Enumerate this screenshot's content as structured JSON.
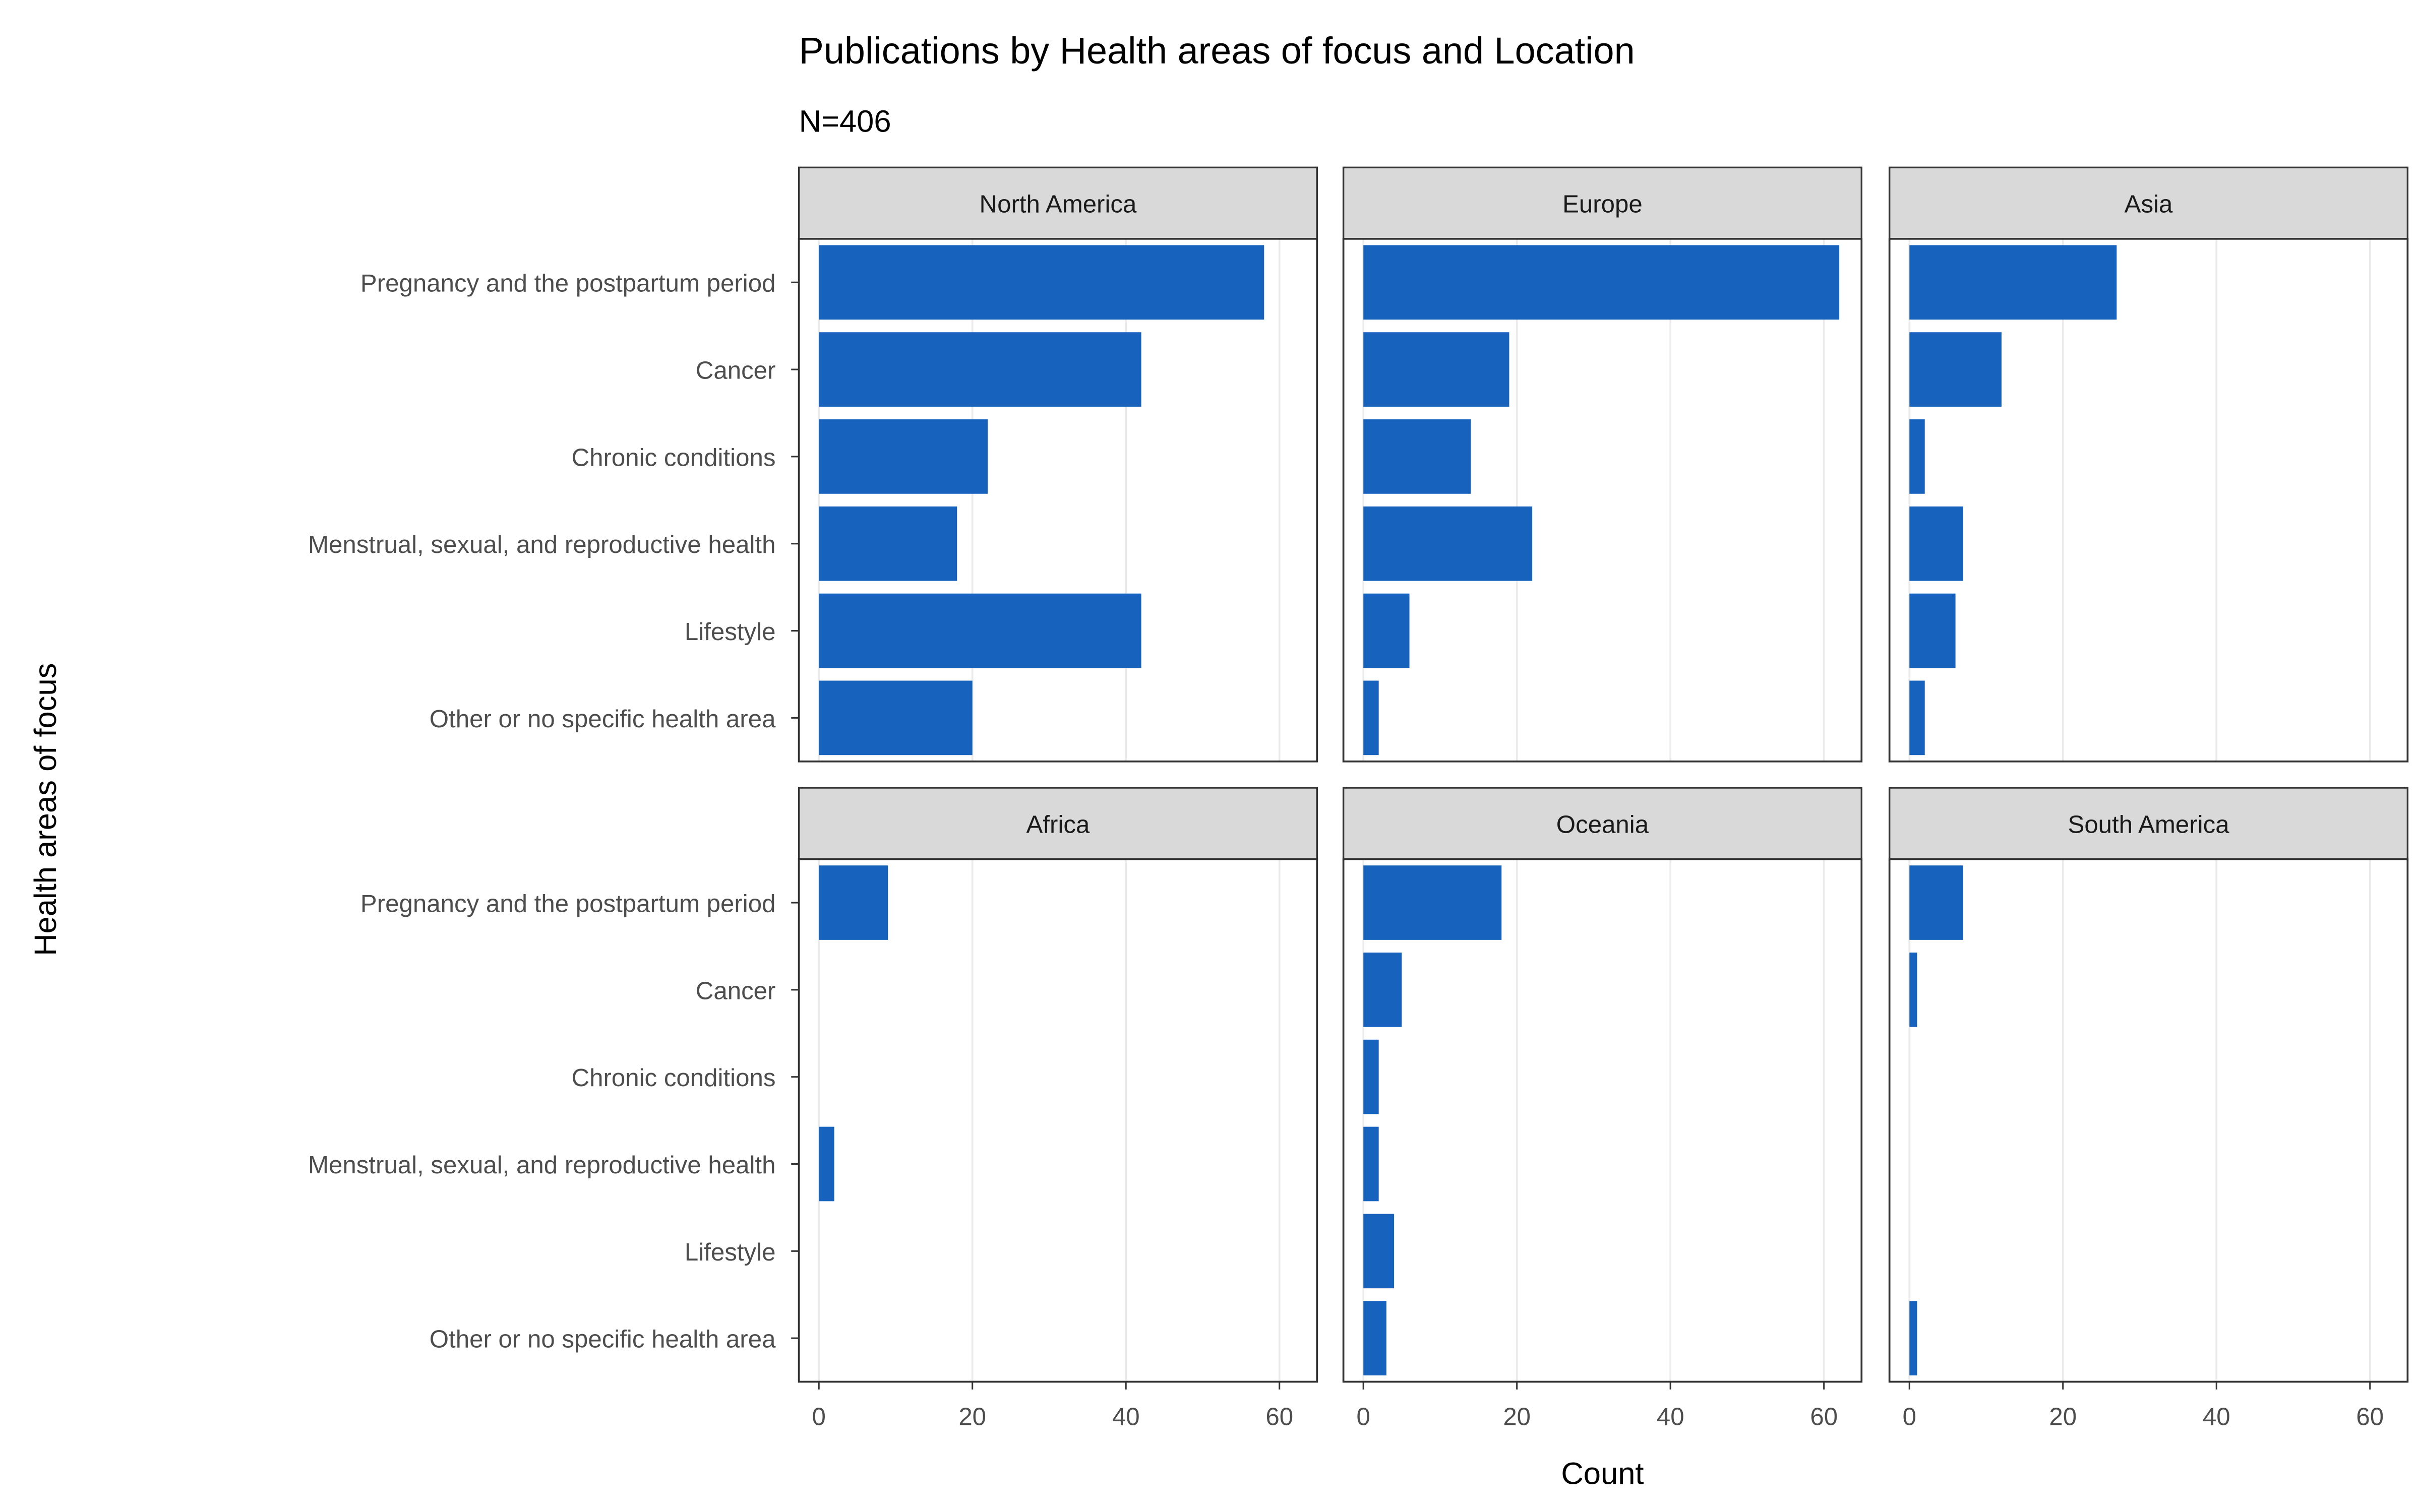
{
  "chart_data": {
    "type": "bar",
    "orientation": "horizontal",
    "title": "Publications by Health areas of focus and Location",
    "subtitle": "N=406",
    "xlabel": "Count",
    "ylabel": "Health areas of focus",
    "xlim": [
      -2.6,
      64.9
    ],
    "xticks": [
      0,
      20,
      40,
      60
    ],
    "grid": true,
    "bar_color": "#1662BD",
    "categories": [
      "Pregnancy and the postpartum period",
      "Cancer",
      "Chronic conditions",
      "Menstrual, sexual, and reproductive health",
      "Lifestyle",
      "Other or no specific health area"
    ],
    "facets": [
      {
        "name": "North America",
        "values": [
          58,
          42,
          22,
          18,
          42,
          20
        ]
      },
      {
        "name": "Europe",
        "values": [
          62,
          19,
          14,
          22,
          6,
          2
        ]
      },
      {
        "name": "Asia",
        "values": [
          27,
          12,
          2,
          7,
          6,
          2
        ]
      },
      {
        "name": "Africa",
        "values": [
          9,
          0,
          0,
          2,
          0,
          0
        ]
      },
      {
        "name": "Oceania",
        "values": [
          18,
          5,
          2,
          2,
          4,
          3
        ]
      },
      {
        "name": "South America",
        "values": [
          7,
          1,
          0,
          0,
          0,
          1
        ]
      }
    ]
  }
}
